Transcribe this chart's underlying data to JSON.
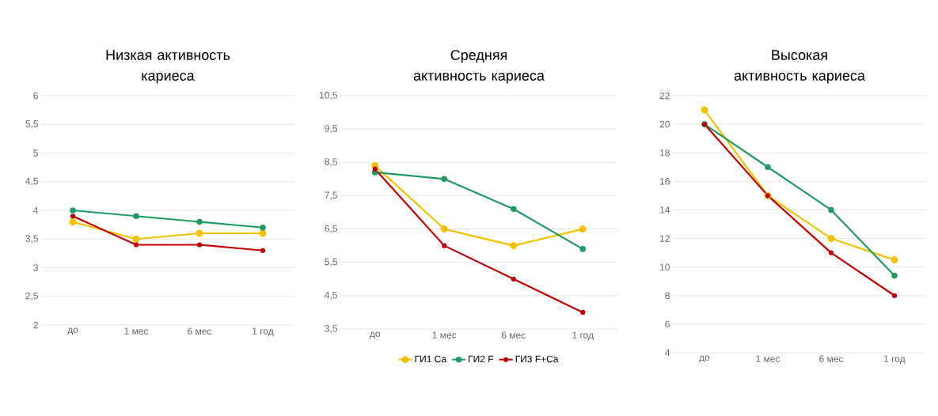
{
  "chart_data": [
    {
      "type": "line",
      "title": "Низкая активность кариеса",
      "categories": [
        "до",
        "1 мес",
        "6 мес",
        "1 год"
      ],
      "series": [
        {
          "color": "#f2c200",
          "values": [
            3.8,
            3.5,
            3.6,
            3.6
          ]
        },
        {
          "color": "#1f9a64",
          "values": [
            4.0,
            3.9,
            3.8,
            3.7
          ]
        },
        {
          "color": "#c00000",
          "values": [
            3.9,
            3.4,
            3.4,
            3.3
          ]
        }
      ],
      "ylim": [
        2,
        6
      ],
      "yticks": [
        2,
        {
          "value": 2.5,
          "label": "2,5"
        },
        3,
        {
          "value": 3.5,
          "label": "3,5"
        },
        4,
        {
          "value": 4.5,
          "label": "4,5"
        },
        5,
        {
          "value": 5.5,
          "label": "5,5"
        },
        6
      ],
      "grid": "y",
      "marker": "circle",
      "line_style": "solid"
    },
    {
      "type": "line",
      "title": "Средняя активность кариеса",
      "categories": [
        "до",
        "1 мес",
        "6 мес",
        "1 год"
      ],
      "series": [
        {
          "name": "ГИ1 Ca",
          "color": "#f2c200",
          "values": [
            8.4,
            6.5,
            6.0,
            6.5
          ]
        },
        {
          "name": "ГИ2 F",
          "color": "#1f9a64",
          "values": [
            8.2,
            8.0,
            7.1,
            5.9
          ]
        },
        {
          "name": "ГИ3 F+Ca",
          "color": "#c00000",
          "values": [
            8.3,
            6.0,
            5.0,
            4.0
          ]
        }
      ],
      "ylim": [
        3.5,
        10.5
      ],
      "yticks": [
        {
          "value": 3.5,
          "label": "3,5"
        },
        {
          "value": 4.5,
          "label": "4,5"
        },
        {
          "value": 5.5,
          "label": "5,5"
        },
        {
          "value": 6.5,
          "label": "6,5"
        },
        {
          "value": 7.5,
          "label": "7,5"
        },
        {
          "value": 8.5,
          "label": "8,5"
        },
        {
          "value": 9.5,
          "label": "9,5"
        },
        {
          "value": 10.5,
          "label": "10,5"
        }
      ],
      "grid": "y",
      "marker": "circle",
      "line_style": "solid",
      "legend": "bottom"
    },
    {
      "type": "line",
      "title": "Высокая активность кариеса",
      "categories": [
        "до",
        "1 мес",
        "6 мес",
        "1 год"
      ],
      "series": [
        {
          "color": "#f2c200",
          "values": [
            21,
            15,
            12,
            10.5
          ]
        },
        {
          "color": "#1f9a64",
          "values": [
            20,
            17,
            14,
            9.4
          ]
        },
        {
          "color": "#c00000",
          "values": [
            20,
            15,
            11,
            8
          ]
        }
      ],
      "ylim": [
        4,
        22
      ],
      "yticks": [
        4,
        6,
        8,
        10,
        12,
        14,
        16,
        18,
        20,
        22
      ],
      "grid": "y",
      "marker": "circle",
      "line_style": "solid"
    }
  ]
}
